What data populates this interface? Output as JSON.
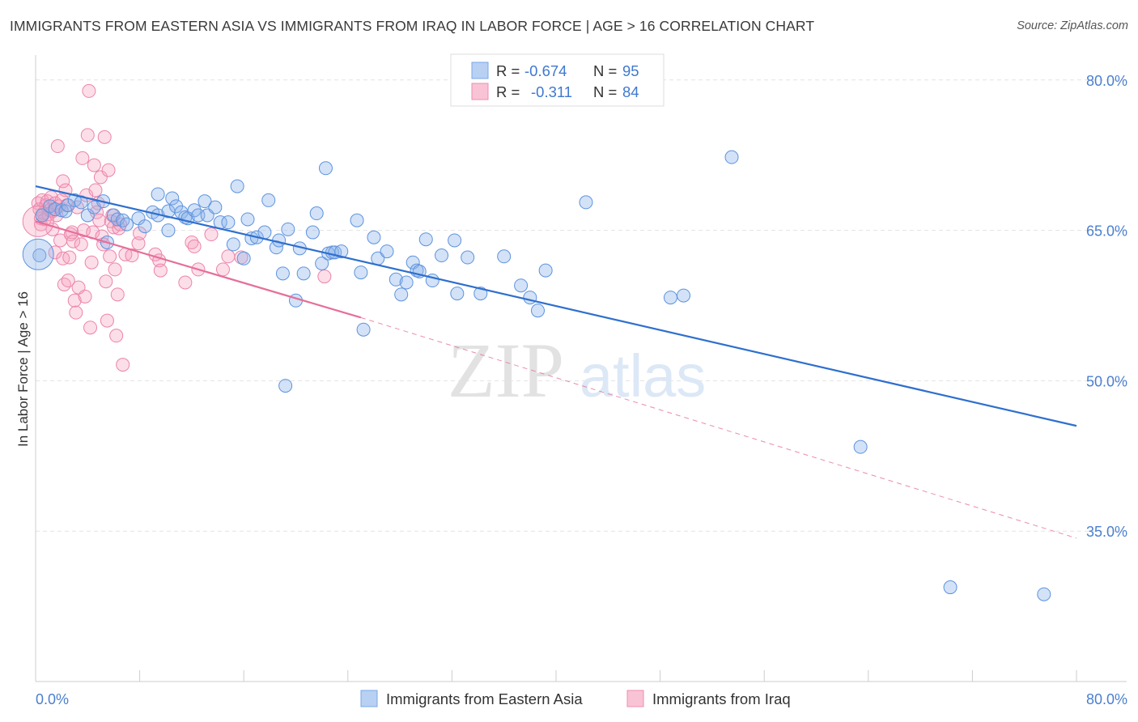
{
  "title": "IMMIGRANTS FROM EASTERN ASIA VS IMMIGRANTS FROM IRAQ IN LABOR FORCE | AGE > 16 CORRELATION CHART",
  "source": "Source: ZipAtlas.com",
  "watermark": {
    "zip": "ZIP",
    "atlas": "atlas"
  },
  "stats": [
    {
      "r_label": "R =",
      "r_value": "-0.674",
      "n_label": "N =",
      "n_value": "95",
      "color": "#7aa7e8"
    },
    {
      "r_label": "R =",
      "r_value": "-0.311",
      "n_label": "N =",
      "n_value": "84",
      "color": "#f08db0"
    }
  ],
  "chart_data": {
    "type": "scatter",
    "title": "IMMIGRANTS FROM EASTERN ASIA VS IMMIGRANTS FROM IRAQ IN LABOR FORCE | AGE > 16 CORRELATION CHART",
    "xlabel": "",
    "ylabel": "In Labor Force | Age > 16",
    "xlim": [
      0,
      80
    ],
    "ylim": [
      20,
      82
    ],
    "x_tick_labels": [
      "0.0%",
      "80.0%"
    ],
    "y_ticks": [
      35,
      50,
      65,
      80
    ],
    "y_tick_labels": [
      "35.0%",
      "50.0%",
      "65.0%",
      "80.0%"
    ],
    "grid": true,
    "legend_position": "bottom",
    "series": [
      {
        "name": "Immigrants from Eastern Asia",
        "color": "#7aa7e8",
        "line_color": "#2e6fce",
        "trend": {
          "x": [
            0,
            80
          ],
          "y": [
            69.4,
            45.5
          ]
        },
        "points": [
          [
            0.3,
            62.5
          ],
          [
            0.5,
            66.5
          ],
          [
            1.1,
            67.4
          ],
          [
            1.5,
            67.1
          ],
          [
            2.0,
            67.0
          ],
          [
            2.3,
            66.9
          ],
          [
            2.5,
            67.5
          ],
          [
            3.0,
            68.0
          ],
          [
            3.5,
            67.8
          ],
          [
            4.0,
            66.5
          ],
          [
            4.5,
            67.3
          ],
          [
            5.2,
            67.9
          ],
          [
            5.5,
            63.8
          ],
          [
            6.0,
            66.5
          ],
          [
            6.3,
            66.1
          ],
          [
            6.7,
            66.0
          ],
          [
            7.0,
            65.6
          ],
          [
            7.9,
            66.2
          ],
          [
            8.4,
            65.4
          ],
          [
            9.0,
            66.8
          ],
          [
            9.4,
            66.5
          ],
          [
            9.4,
            68.6
          ],
          [
            10.2,
            66.9
          ],
          [
            10.2,
            65.0
          ],
          [
            10.5,
            68.2
          ],
          [
            10.8,
            67.4
          ],
          [
            11.2,
            66.8
          ],
          [
            11.5,
            66.3
          ],
          [
            11.7,
            66.2
          ],
          [
            12.2,
            67.0
          ],
          [
            12.5,
            66.5
          ],
          [
            13.0,
            67.9
          ],
          [
            13.2,
            66.5
          ],
          [
            13.8,
            67.3
          ],
          [
            14.2,
            65.8
          ],
          [
            14.8,
            65.8
          ],
          [
            15.2,
            63.6
          ],
          [
            15.5,
            69.4
          ],
          [
            16.0,
            62.2
          ],
          [
            16.3,
            66.1
          ],
          [
            16.6,
            64.2
          ],
          [
            17.0,
            64.3
          ],
          [
            17.6,
            64.8
          ],
          [
            17.9,
            68.0
          ],
          [
            18.5,
            63.3
          ],
          [
            18.7,
            64.0
          ],
          [
            19.0,
            60.7
          ],
          [
            19.4,
            65.1
          ],
          [
            20.0,
            58.0
          ],
          [
            20.3,
            63.2
          ],
          [
            20.6,
            60.7
          ],
          [
            21.3,
            64.8
          ],
          [
            21.6,
            66.7
          ],
          [
            22.0,
            61.7
          ],
          [
            22.3,
            71.2
          ],
          [
            22.5,
            62.7
          ],
          [
            22.8,
            62.8
          ],
          [
            23.0,
            62.8
          ],
          [
            23.5,
            62.9
          ],
          [
            24.7,
            66.0
          ],
          [
            25.0,
            60.8
          ],
          [
            25.2,
            55.1
          ],
          [
            26.0,
            64.3
          ],
          [
            26.3,
            62.2
          ],
          [
            27.0,
            62.9
          ],
          [
            27.7,
            60.1
          ],
          [
            28.1,
            58.6
          ],
          [
            28.5,
            59.8
          ],
          [
            29.0,
            61.8
          ],
          [
            29.3,
            61.0
          ],
          [
            29.5,
            60.9
          ],
          [
            30.0,
            64.1
          ],
          [
            30.5,
            60.0
          ],
          [
            31.2,
            62.5
          ],
          [
            32.2,
            64.0
          ],
          [
            32.4,
            58.7
          ],
          [
            33.2,
            62.3
          ],
          [
            34.2,
            58.7
          ],
          [
            36.0,
            62.4
          ],
          [
            37.3,
            59.5
          ],
          [
            38.0,
            58.3
          ],
          [
            38.6,
            57.0
          ],
          [
            39.2,
            61.0
          ],
          [
            42.3,
            67.8
          ],
          [
            48.8,
            58.3
          ],
          [
            49.8,
            58.5
          ],
          [
            53.5,
            72.3
          ],
          [
            63.4,
            43.4
          ],
          [
            70.3,
            29.4
          ],
          [
            77.5,
            28.7
          ],
          [
            19.2,
            49.5
          ]
        ]
      },
      {
        "name": "Immigrants from Iraq",
        "color": "#f08db0",
        "line_color": "#e56f9a",
        "trend": {
          "x": [
            0,
            25
          ],
          "y": [
            65.9,
            56.3
          ]
        },
        "trend_extension": {
          "x": [
            25,
            80
          ],
          "y": [
            56.3,
            34.3
          ]
        },
        "points": [
          [
            0.2,
            67.7
          ],
          [
            0.3,
            67.1
          ],
          [
            0.4,
            66.2
          ],
          [
            0.4,
            65.6
          ],
          [
            0.5,
            68.0
          ],
          [
            0.6,
            66.7
          ],
          [
            0.7,
            66.1
          ],
          [
            0.8,
            67.5
          ],
          [
            0.9,
            67.9
          ],
          [
            1.0,
            66.6
          ],
          [
            1.1,
            67.0
          ],
          [
            1.2,
            68.3
          ],
          [
            1.3,
            65.1
          ],
          [
            1.3,
            66.9
          ],
          [
            1.5,
            67.7
          ],
          [
            1.5,
            62.8
          ],
          [
            1.6,
            66.5
          ],
          [
            1.7,
            73.4
          ],
          [
            1.8,
            67.4
          ],
          [
            1.9,
            64.0
          ],
          [
            2.0,
            68.0
          ],
          [
            2.1,
            69.9
          ],
          [
            2.1,
            62.2
          ],
          [
            2.2,
            59.6
          ],
          [
            2.3,
            69.0
          ],
          [
            2.4,
            67.5
          ],
          [
            2.5,
            60.0
          ],
          [
            2.6,
            62.3
          ],
          [
            2.7,
            64.6
          ],
          [
            2.8,
            64.8
          ],
          [
            2.9,
            63.9
          ],
          [
            3.0,
            58.0
          ],
          [
            3.1,
            56.8
          ],
          [
            3.2,
            67.3
          ],
          [
            3.3,
            59.3
          ],
          [
            3.5,
            63.6
          ],
          [
            3.6,
            72.2
          ],
          [
            3.7,
            65.0
          ],
          [
            3.8,
            58.4
          ],
          [
            3.9,
            68.5
          ],
          [
            4.0,
            74.5
          ],
          [
            4.1,
            78.9
          ],
          [
            4.2,
            55.3
          ],
          [
            4.3,
            61.8
          ],
          [
            4.4,
            64.8
          ],
          [
            4.5,
            71.5
          ],
          [
            4.6,
            69.0
          ],
          [
            4.7,
            66.8
          ],
          [
            4.8,
            67.7
          ],
          [
            4.9,
            66.0
          ],
          [
            5.0,
            70.3
          ],
          [
            5.1,
            64.4
          ],
          [
            5.2,
            63.6
          ],
          [
            5.3,
            74.3
          ],
          [
            5.4,
            59.9
          ],
          [
            5.5,
            56.0
          ],
          [
            5.6,
            71.0
          ],
          [
            5.7,
            62.4
          ],
          [
            5.8,
            65.9
          ],
          [
            5.9,
            66.5
          ],
          [
            6.0,
            65.3
          ],
          [
            6.1,
            61.1
          ],
          [
            6.2,
            54.5
          ],
          [
            6.3,
            58.6
          ],
          [
            6.4,
            65.2
          ],
          [
            6.5,
            65.6
          ],
          [
            6.7,
            51.6
          ],
          [
            6.9,
            62.6
          ],
          [
            7.4,
            62.5
          ],
          [
            7.9,
            63.7
          ],
          [
            8.0,
            64.7
          ],
          [
            9.2,
            62.6
          ],
          [
            9.5,
            62.0
          ],
          [
            9.6,
            61.0
          ],
          [
            11.5,
            59.8
          ],
          [
            12.0,
            63.8
          ],
          [
            12.2,
            63.4
          ],
          [
            12.5,
            61.1
          ],
          [
            13.5,
            64.6
          ],
          [
            14.4,
            61.1
          ],
          [
            14.8,
            62.4
          ],
          [
            15.8,
            62.3
          ],
          [
            22.2,
            60.4
          ]
        ]
      }
    ],
    "large_points": [
      {
        "series": 0,
        "x": 0.2,
        "y": 62.6
      },
      {
        "series": 1,
        "x": 0.2,
        "y": 65.9
      }
    ]
  }
}
